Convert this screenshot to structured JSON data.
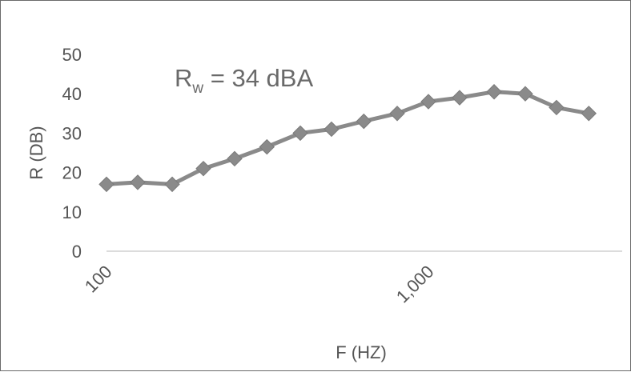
{
  "chart_data": {
    "type": "line",
    "title": "",
    "xlabel": "F (HZ)",
    "ylabel": "R (DB)",
    "x_scale": "log",
    "xlim": [
      100,
      4000
    ],
    "ylim": [
      0,
      50
    ],
    "y_ticks": [
      "0",
      "10",
      "20",
      "30",
      "40",
      "50"
    ],
    "x_ticks": [
      {
        "value": 100,
        "label": "100"
      },
      {
        "value": 1000,
        "label": "1,000"
      }
    ],
    "grid": false,
    "legend": "none",
    "annotation": {
      "main": "R",
      "sub": "w",
      "rest": " = 34 dBA"
    },
    "series": [
      {
        "color": "#8a8a8a",
        "marker": "diamond",
        "x": [
          100,
          125,
          160,
          200,
          250,
          315,
          400,
          500,
          630,
          800,
          1000,
          1250,
          1600,
          2000,
          2500,
          3150
        ],
        "values": [
          17,
          17.5,
          17,
          21,
          23.5,
          26.5,
          30,
          31,
          33,
          35,
          38,
          39,
          40.5,
          40,
          36.5,
          35
        ]
      }
    ]
  }
}
